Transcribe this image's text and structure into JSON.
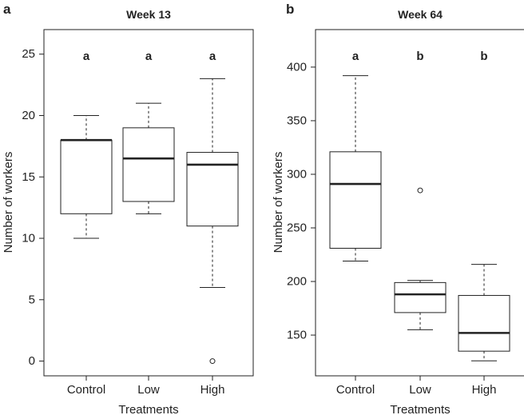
{
  "chart_data": [
    {
      "type": "boxplot",
      "panel_label": "a",
      "title": "Week 13",
      "xlabel": "Treatments",
      "ylabel": "Number of workers",
      "ylim": [
        -1.2,
        27
      ],
      "yticks": [
        0,
        5,
        10,
        15,
        20,
        25
      ],
      "categories": [
        "Control",
        "Low",
        "High"
      ],
      "boxes": [
        {
          "category": "Control",
          "whisker_low": 10,
          "q1": 12,
          "median": 18,
          "q3": 18,
          "whisker_high": 20,
          "outliers": [],
          "letter": "a"
        },
        {
          "category": "Low",
          "whisker_low": 12,
          "q1": 13,
          "median": 16.5,
          "q3": 19,
          "whisker_high": 21,
          "outliers": [],
          "letter": "a"
        },
        {
          "category": "High",
          "whisker_low": 6,
          "q1": 11,
          "median": 16,
          "q3": 17,
          "whisker_high": 23,
          "outliers": [
            0
          ],
          "letter": "a"
        }
      ]
    },
    {
      "type": "boxplot",
      "panel_label": "b",
      "title": "Week 64",
      "xlabel": "Treatments",
      "ylabel": "Number of workers",
      "ylim": [
        112,
        435
      ],
      "yticks": [
        150,
        200,
        250,
        300,
        350,
        400
      ],
      "categories": [
        "Control",
        "Low",
        "High"
      ],
      "boxes": [
        {
          "category": "Control",
          "whisker_low": 219,
          "q1": 231,
          "median": 291,
          "q3": 321,
          "whisker_high": 392,
          "outliers": [],
          "letter": "a"
        },
        {
          "category": "Low",
          "whisker_low": 155,
          "q1": 171,
          "median": 188,
          "q3": 199,
          "whisker_high": 201,
          "outliers": [
            285
          ],
          "letter": "b"
        },
        {
          "category": "High",
          "whisker_low": 126,
          "q1": 135,
          "median": 152,
          "q3": 187,
          "whisker_high": 216,
          "outliers": [],
          "letter": "b"
        }
      ]
    }
  ]
}
